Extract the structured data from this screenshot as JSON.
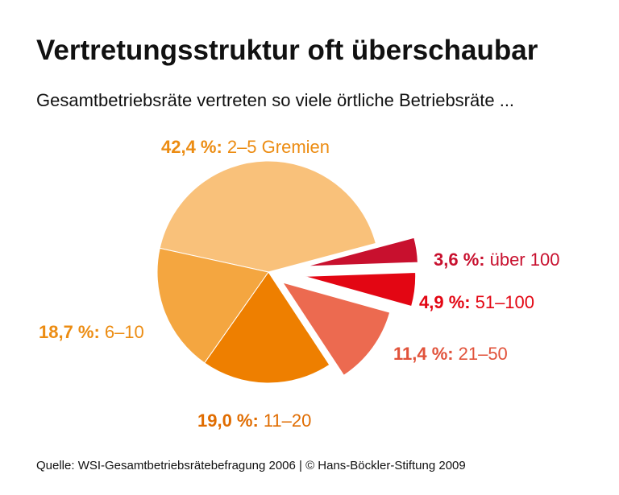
{
  "chart_data": {
    "type": "pie",
    "title": "Vertretungsstruktur oft überschaubar",
    "subtitle": "Gesamtbetriebsräte vertreten so viele örtliche Betriebsräte ...",
    "categories": [
      "2–5 Gremien",
      "über 100",
      "51–100",
      "21–50",
      "11–20",
      "6–10"
    ],
    "values": [
      42.4,
      3.6,
      4.9,
      11.4,
      19.0,
      18.7
    ],
    "value_labels": [
      "42,4 %:",
      "3,6 %:",
      "4,9 %:",
      "11,4 %:",
      "19,0 %:",
      "18,7 %:"
    ],
    "colors": [
      "#f9c17a",
      "#c8102e",
      "#e30613",
      "#ec6a50",
      "#ee7f00",
      "#f4a640"
    ],
    "label_colors": [
      "#ec8c12",
      "#c8102e",
      "#e30613",
      "#e1523a",
      "#e06c00",
      "#ec8c12"
    ],
    "source": "Quelle: WSI-Gesamtbetriebsrätebefragung 2006 | © Hans-Böckler-Stiftung 2009"
  }
}
